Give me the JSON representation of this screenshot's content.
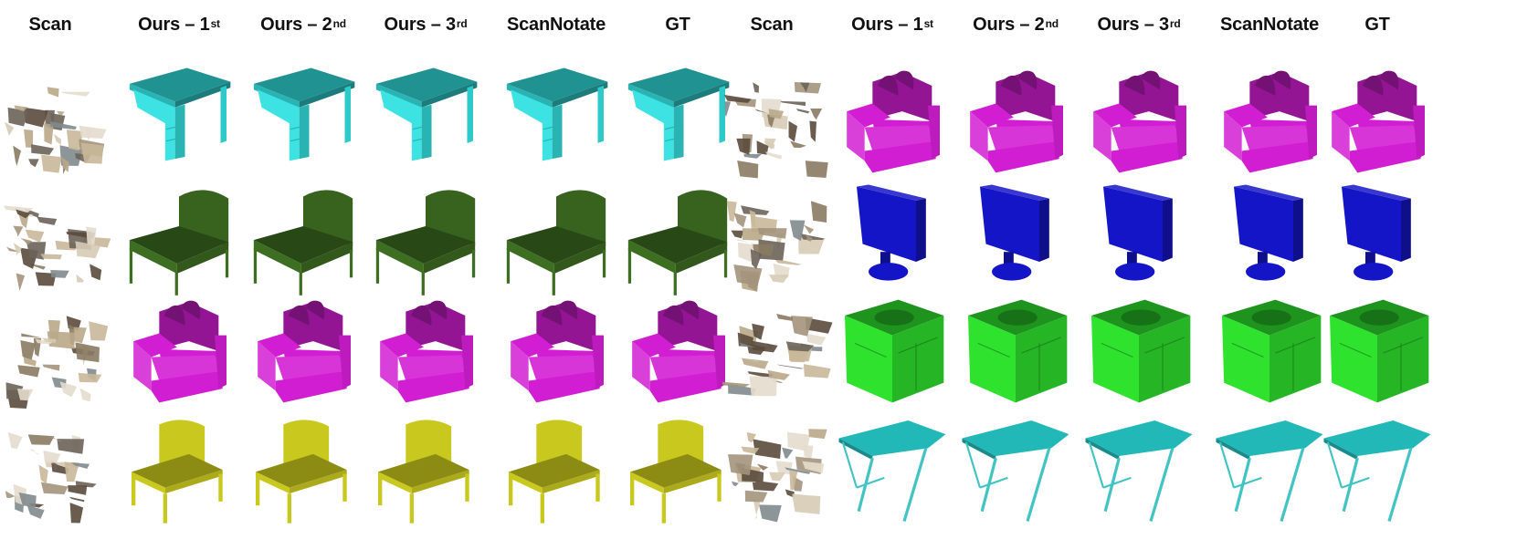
{
  "column_headers": [
    {
      "text": "Scan",
      "sup": ""
    },
    {
      "text": "Ours – 1",
      "sup": "st"
    },
    {
      "text": "Ours – 2",
      "sup": "nd"
    },
    {
      "text": "Ours – 3",
      "sup": "rd"
    },
    {
      "text": "ScanNotate",
      "sup": ""
    },
    {
      "text": "GT",
      "sup": ""
    },
    {
      "text": "Scan",
      "sup": ""
    },
    {
      "text": "Ours – 1",
      "sup": "st"
    },
    {
      "text": "Ours – 2",
      "sup": "nd"
    },
    {
      "text": "Ours – 3",
      "sup": "rd"
    },
    {
      "text": "ScanNotate",
      "sup": ""
    },
    {
      "text": "GT",
      "sup": ""
    }
  ],
  "rows": [
    {
      "left": {
        "category": "desk",
        "color": "#33e0e0"
      },
      "right": {
        "category": "armchair",
        "color": "#d21ed2"
      }
    },
    {
      "left": {
        "category": "bed",
        "color": "#3e6e22"
      },
      "right": {
        "category": "monitor",
        "color": "#1515c8"
      }
    },
    {
      "left": {
        "category": "armchair",
        "color": "#d21ed2"
      },
      "right": {
        "category": "cabinet",
        "color": "#2ee22e"
      }
    },
    {
      "left": {
        "category": "chair",
        "color": "#c8c81e"
      },
      "right": {
        "category": "table",
        "color": "#23b8b8"
      }
    }
  ]
}
